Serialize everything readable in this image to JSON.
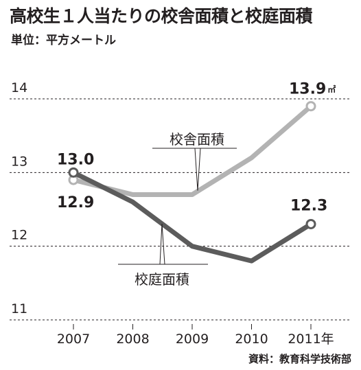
{
  "title": "高校生１人当たりの校舎面積と校庭面積",
  "unit_label": "単位：平方メートル",
  "source": "資料：教育科学技術部",
  "chart_data": {
    "type": "line",
    "x": [
      "2007",
      "2008",
      "2009",
      "2010",
      "2011年"
    ],
    "ylim": [
      11,
      14
    ],
    "yticks": [
      "14",
      "13",
      "12",
      "11"
    ],
    "grid": true,
    "series": [
      {
        "name": "校舎面積",
        "values": [
          12.9,
          12.7,
          12.7,
          13.2,
          13.9
        ],
        "color": "#b3b3b3",
        "labels": {
          "start": "12.9",
          "end": "13.9",
          "end_unit": "㎡"
        }
      },
      {
        "name": "校庭面積",
        "values": [
          13.0,
          12.6,
          12.0,
          11.8,
          12.3
        ],
        "color": "#5c5c5c",
        "labels": {
          "start": "13.0",
          "end": "12.3"
        }
      }
    ]
  }
}
